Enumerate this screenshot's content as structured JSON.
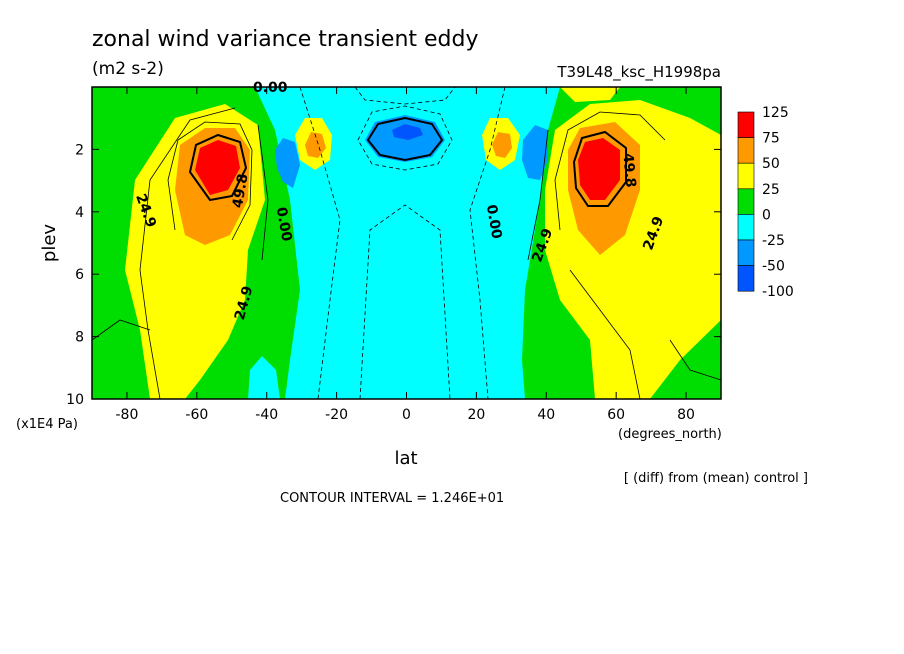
{
  "chart_data": {
    "type": "heatmap",
    "title": "zonal wind variance transient eddy",
    "units": "(m2 s-2)",
    "run_label": "T39L48_ksc_H1998pa",
    "xlabel": "lat",
    "x_units": "(degrees_north)",
    "ylabel": "plev",
    "y_units": "(x1E4 Pa)",
    "xlim": [
      -90,
      90
    ],
    "ylim": [
      10,
      0
    ],
    "xticks": [
      "-80",
      "-60",
      "-40",
      "-20",
      "0",
      "20",
      "40",
      "60",
      "80"
    ],
    "yticks": [
      "2",
      "4",
      "6",
      "8",
      "10"
    ],
    "colorbar": {
      "levels": [
        "125",
        "75",
        "50",
        "25",
        "0",
        "-25",
        "-50",
        "-100"
      ],
      "colors": [
        "#ff0000",
        "#ff9900",
        "#ffff00",
        "#00dd00",
        "#00ffff",
        "#0099ff",
        "#0055ff"
      ]
    },
    "contour_labels": [
      "0.00",
      "24.9",
      "49.8",
      "0.00",
      "0.00",
      "49.8",
      "24.9",
      "24.9",
      "24.9"
    ],
    "note": "[ (diff) from (mean) control ]",
    "contour_interval": "CONTOUR INTERVAL = 1.246E+01",
    "features": [
      {
        "lat": -53,
        "plev": 2.5,
        "peak": 125
      },
      {
        "lat": 52,
        "plev": 2.5,
        "peak": 125
      },
      {
        "lat": -26,
        "plev": 2.0,
        "peak": 75
      },
      {
        "lat": 27,
        "plev": 2.0,
        "peak": 75
      },
      {
        "lat": -33,
        "plev": 2.5,
        "peak": -50
      },
      {
        "lat": 35,
        "plev": 2.5,
        "peak": -50
      },
      {
        "lat": 0,
        "plev": 1.4,
        "peak": -60
      }
    ]
  }
}
